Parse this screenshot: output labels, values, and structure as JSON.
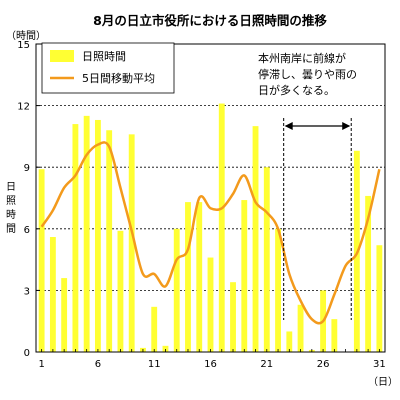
{
  "chart_data": {
    "type": "bar",
    "title": "8月の日立市役所における日照時間の推移",
    "y_unit_label": "（時間）",
    "x_unit_label": "（日）",
    "ylabel": "日照時間",
    "ylim": [
      0,
      15
    ],
    "y_ticks": [
      "0",
      "3",
      "6",
      "9",
      "12",
      "15"
    ],
    "x_tick_labels": [
      "1",
      "6",
      "11",
      "16",
      "21",
      "26",
      "31"
    ],
    "grid": "horizontal dashed at 3, 6, 9, 12",
    "legend_position": "top-left",
    "categories": [
      1,
      2,
      3,
      4,
      5,
      6,
      7,
      8,
      9,
      10,
      11,
      12,
      13,
      14,
      15,
      16,
      17,
      18,
      19,
      20,
      21,
      22,
      23,
      24,
      25,
      26,
      27,
      28,
      29,
      30,
      31
    ],
    "series": [
      {
        "name": "日照時間",
        "kind": "bar",
        "color": "#ffff33",
        "values": [
          8.9,
          5.6,
          3.6,
          11.1,
          11.5,
          11.3,
          10.8,
          5.9,
          10.6,
          0.2,
          2.2,
          0.3,
          6.0,
          7.3,
          7.3,
          4.6,
          12.1,
          3.4,
          7.4,
          11.0,
          9.0,
          6.0,
          1.0,
          2.3,
          0.1,
          3.0,
          1.6,
          0.0,
          9.8,
          7.6,
          5.2
        ]
      },
      {
        "name": "5日間移動平均",
        "kind": "line",
        "color": "#f39a1c",
        "values": [
          6.1,
          6.9,
          8.0,
          8.6,
          9.6,
          10.1,
          10.0,
          8.0,
          5.9,
          3.8,
          3.8,
          3.2,
          4.5,
          5.0,
          7.5,
          7.0,
          7.0,
          7.7,
          8.6,
          7.3,
          6.8,
          6.0,
          3.8,
          2.5,
          1.6,
          1.5,
          2.8,
          4.2,
          4.8,
          6.5,
          8.9
        ]
      }
    ],
    "annotation": {
      "lines": [
        "本州南岸に前線が",
        "停滞し、曇りや雨の",
        "日が多くなる。"
      ],
      "range_start_day": 23,
      "range_end_day": 28
    }
  }
}
